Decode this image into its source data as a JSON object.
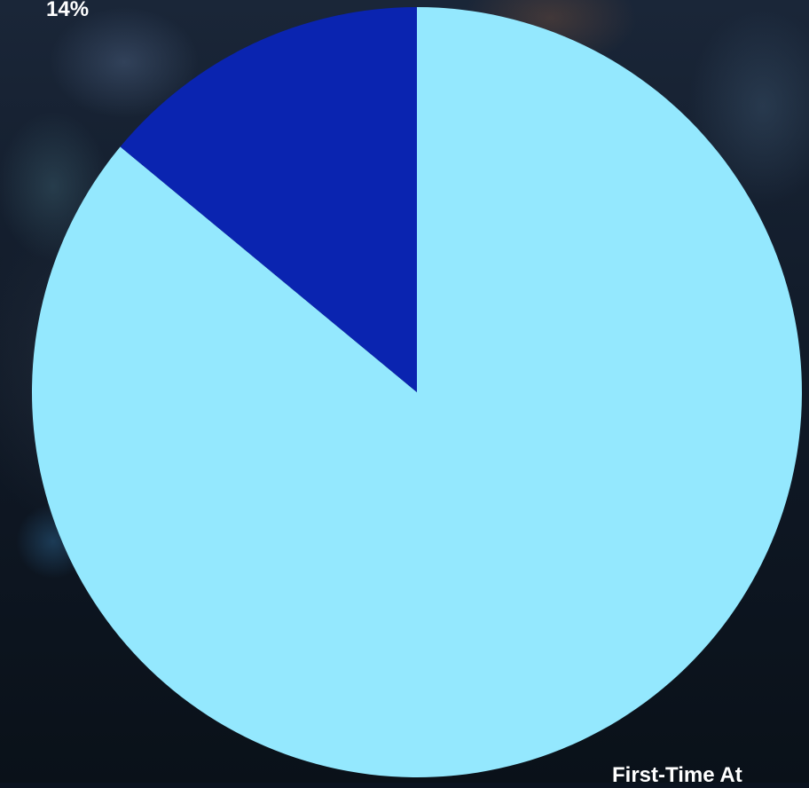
{
  "chart_data": {
    "type": "pie",
    "slices": [
      {
        "label": "",
        "value": 86,
        "color": "#94e8fe"
      },
      {
        "label": "14%",
        "value": 14,
        "color": "#0a24b0"
      }
    ],
    "legend": {
      "partial_text": "First-Time At"
    },
    "background": "dark photo of audience"
  }
}
